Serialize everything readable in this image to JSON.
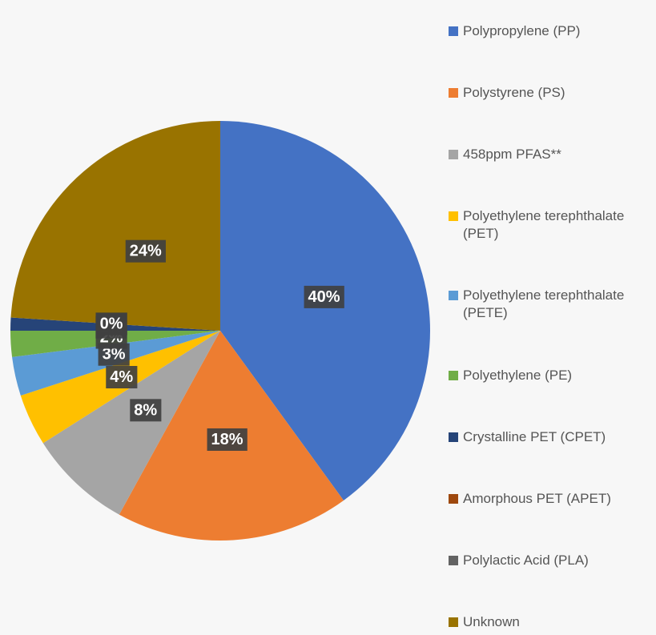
{
  "chart_data": {
    "type": "pie",
    "categories": [
      "Polypropylene (PP)",
      "Polystyrene (PS)",
      "458ppm PFAS**",
      "Polyethylene terephthalate (PET)",
      "Polyethylene terephthalate (PETE)",
      "Polyethylene (PE)",
      "Crystalline PET (CPET)",
      "Amorphous PET (APET)",
      "Polylactic Acid (PLA)",
      "Unknown"
    ],
    "values": [
      40,
      18,
      8,
      4,
      3,
      2,
      1,
      0,
      0,
      24
    ],
    "value_labels": [
      "40%",
      "18%",
      "8%",
      "4%",
      "3%",
      "2%",
      "1%",
      "0%",
      "0%",
      "24%"
    ],
    "colors": [
      "#4472C4",
      "#ED7D31",
      "#A5A5A5",
      "#FFC000",
      "#5B9BD5",
      "#70AD47",
      "#264478",
      "#9E480E",
      "#636363",
      "#997300"
    ]
  }
}
